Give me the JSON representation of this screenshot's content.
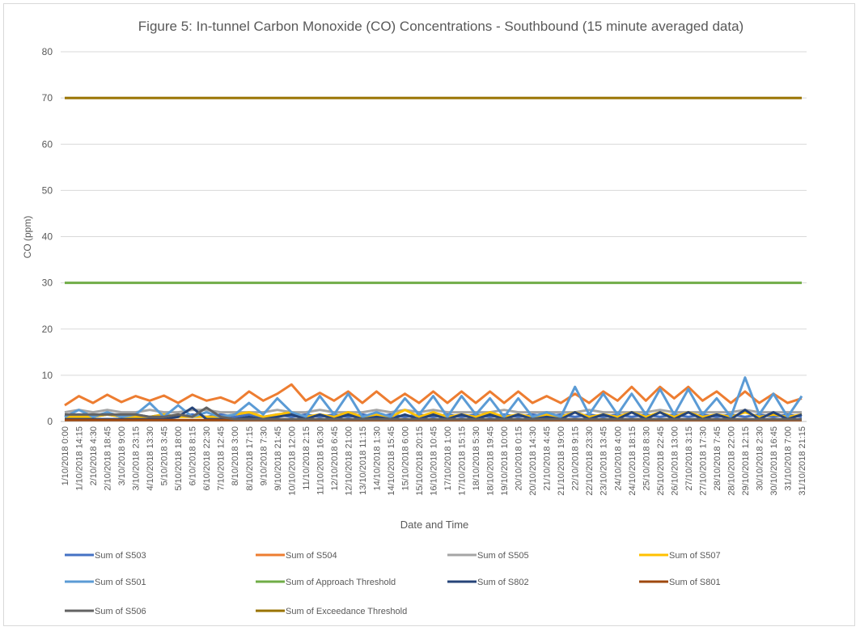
{
  "chart_data": {
    "type": "line",
    "title": "Figure 5:  In-tunnel Carbon Monoxide (CO) Concentrations - Southbound (15 minute averaged data)",
    "x_label": "Date and Time",
    "y_label": "CO (ppm)",
    "ylim": [
      0,
      80
    ],
    "yticks": [
      0,
      10,
      20,
      30,
      40,
      50,
      60,
      70,
      80
    ],
    "grid": true,
    "legend": "bottom",
    "categories": [
      "1/10/2018 0:00",
      "1/10/2018 14:15",
      "2/10/2018 4:30",
      "2/10/2018 18:45",
      "3/10/2018 9:00",
      "3/10/2018 23:15",
      "4/10/2018 13:30",
      "5/10/2018 3:45",
      "5/10/2018 18:00",
      "6/10/2018 8:15",
      "6/10/2018 22:30",
      "7/10/2018 12:45",
      "8/10/2018 3:00",
      "8/10/2018 17:15",
      "9/10/2018 7:30",
      "9/10/2018 21:45",
      "10/10/2018 12:00",
      "11/10/2018 2:15",
      "11/10/2018 16:30",
      "12/10/2018 6:45",
      "12/10/2018 21:00",
      "13/10/2018 11:15",
      "14/10/2018 1:30",
      "14/10/2018 15:45",
      "15/10/2018 6:00",
      "15/10/2018 20:15",
      "16/10/2018 10:45",
      "17/10/2018 1:00",
      "17/10/2018 15:15",
      "18/10/2018 5:30",
      "18/10/2018 19:45",
      "19/10/2018 10:00",
      "20/10/2018 0:15",
      "20/10/2018 14:30",
      "21/10/2018 4:45",
      "21/10/2018 19:00",
      "22/10/2018 9:15",
      "22/10/2018 23:30",
      "23/10/2018 13:45",
      "24/10/2018 4:00",
      "24/10/2018 18:15",
      "25/10/2018 8:30",
      "25/10/2018 22:45",
      "26/10/2018 13:00",
      "27/10/2018 3:15",
      "27/10/2018 17:30",
      "28/10/2018 7:45",
      "28/10/2018 22:00",
      "29/10/2018 12:15",
      "30/10/2018 2:30",
      "30/10/2018 16:45",
      "31/10/2018 7:00",
      "31/10/2018 21:15"
    ],
    "series": [
      {
        "name": "Sum of S503",
        "color": "#4472c4",
        "values": [
          1,
          1.5,
          1,
          1.5,
          1,
          1.5,
          1,
          1.5,
          1,
          1.5,
          1,
          1.5,
          1,
          1.5,
          1,
          1.5,
          1,
          1.5,
          1,
          1.5,
          1,
          1.5,
          1,
          1.5,
          1,
          1.5,
          1,
          1.5,
          1,
          1.5,
          1,
          1.5,
          1,
          1.5,
          1,
          1.5,
          1,
          1.5,
          1,
          1.5,
          1,
          1.5,
          1,
          1.5,
          1,
          1.5,
          1,
          1.5,
          1,
          1.5,
          1,
          1.5,
          1
        ]
      },
      {
        "name": "Sum of S504",
        "color": "#ed7d31",
        "values": [
          3.5,
          5.5,
          4,
          5.8,
          4.2,
          5.5,
          4.5,
          5.6,
          4,
          5.8,
          4.5,
          5.2,
          4,
          6.5,
          4.5,
          6,
          8,
          4.5,
          6.2,
          4.5,
          6.5,
          4,
          6.5,
          4,
          6,
          4,
          6.5,
          4,
          6.5,
          4,
          6.5,
          4,
          6.5,
          4,
          5.5,
          4,
          6,
          4,
          6.5,
          4.5,
          7.5,
          4.5,
          7.5,
          5,
          7.5,
          4.5,
          6.5,
          4,
          6.5,
          4,
          6,
          4,
          5
        ]
      },
      {
        "name": "Sum of S505",
        "color": "#a5a5a5",
        "values": [
          2,
          2.5,
          2,
          2.5,
          2,
          2,
          2.5,
          2,
          2,
          2.5,
          2.5,
          2,
          2,
          2,
          2,
          2.5,
          2,
          2,
          2.5,
          2,
          2,
          2,
          2.5,
          2,
          2.5,
          2,
          2.5,
          2,
          2,
          2,
          2,
          2.5,
          2,
          2,
          2,
          2,
          2,
          2.5,
          2,
          2,
          2,
          2,
          2.5,
          2,
          2,
          2,
          2,
          2,
          2.5,
          2,
          2,
          2,
          2
        ]
      },
      {
        "name": "Sum of S507",
        "color": "#ffc000",
        "values": [
          1,
          1,
          1,
          1.5,
          1,
          1,
          1,
          1.5,
          1,
          1,
          1,
          1,
          1.5,
          2,
          1,
          1.5,
          2,
          1,
          1.5,
          1,
          2,
          1,
          1.5,
          1,
          2.5,
          1,
          2,
          1,
          1.5,
          1,
          2,
          1,
          1.5,
          1,
          1.5,
          1,
          2,
          1,
          1.5,
          1,
          2,
          1,
          2,
          1,
          2,
          1,
          1.5,
          1,
          2,
          1,
          1.5,
          1,
          1.5
        ]
      },
      {
        "name": "Sum of S501",
        "color": "#5b9bd5",
        "values": [
          1,
          2.5,
          1,
          2,
          1,
          1.5,
          4,
          1,
          3.5,
          1,
          2,
          1,
          1.5,
          4,
          1.5,
          5,
          2,
          1,
          5.5,
          1.5,
          6,
          1,
          2,
          1,
          5,
          1.5,
          5.5,
          1,
          5.5,
          1.5,
          5,
          1,
          5,
          1,
          2,
          1,
          7.5,
          1.5,
          6,
          1.5,
          6,
          1.5,
          7,
          1.5,
          7,
          1.5,
          5,
          1,
          9.5,
          1.5,
          6,
          1,
          5.5
        ]
      },
      {
        "name": "Sum of Approach Threshold",
        "color": "#70ad47",
        "values": [
          30,
          30,
          30,
          30,
          30,
          30,
          30,
          30,
          30,
          30,
          30,
          30,
          30,
          30,
          30,
          30,
          30,
          30,
          30,
          30,
          30,
          30,
          30,
          30,
          30,
          30,
          30,
          30,
          30,
          30,
          30,
          30,
          30,
          30,
          30,
          30,
          30,
          30,
          30,
          30,
          30,
          30,
          30,
          30,
          30,
          30,
          30,
          30,
          30,
          30,
          30,
          30,
          30
        ]
      },
      {
        "name": "Sum of S802",
        "color": "#264478",
        "values": [
          0.5,
          0.5,
          0.5,
          0.5,
          0.5,
          0.5,
          0.5,
          0.5,
          1,
          3,
          0.5,
          0.5,
          0.5,
          1,
          0.5,
          1,
          1.5,
          0.5,
          1.5,
          0.5,
          1.5,
          0.5,
          1,
          0.5,
          1.5,
          0.5,
          1.5,
          0.5,
          1.5,
          0.5,
          1.5,
          0.5,
          1.5,
          0.5,
          1,
          0.5,
          2,
          0.5,
          1.5,
          0.5,
          2,
          0.5,
          2,
          0.5,
          2,
          0.5,
          1.5,
          0.5,
          2.5,
          0.5,
          2,
          0.5,
          1.5
        ]
      },
      {
        "name": "Sum of S801",
        "color": "#9e480e",
        "values": [
          0.3,
          0.3,
          0.3,
          0.3,
          0.3,
          0.3,
          0.3,
          0.3,
          0.3,
          0.3,
          0.3,
          0.3,
          0.3,
          0.3,
          0.3,
          0.3,
          0.3,
          0.3,
          0.3,
          0.3,
          0.3,
          0.3,
          0.3,
          0.3,
          0.3,
          0.3,
          0.3,
          0.3,
          0.3,
          0.3,
          0.3,
          0.3,
          0.3,
          0.3,
          0.3,
          0.3,
          0.3,
          0.3,
          0.3,
          0.3,
          0.3,
          0.3,
          0.3,
          0.3,
          0.3,
          0.3,
          0.3,
          0.3,
          0.3,
          0.3,
          0.3,
          0.3,
          0.3
        ]
      },
      {
        "name": "Sum of S506",
        "color": "#636363",
        "values": [
          1.5,
          1.5,
          1.5,
          1.5,
          1.5,
          1.5,
          1,
          1,
          1.5,
          1,
          3,
          1,
          0.5,
          0.5,
          0.5,
          0.5,
          0.5,
          0.5,
          0.5,
          0.5,
          0.5,
          0.5,
          0.5,
          0.5,
          0.5,
          0.5,
          0.5,
          0.5,
          0.5,
          0.5,
          0.5,
          0.5,
          0.5,
          0.5,
          0.5,
          0.5,
          0.5,
          0.5,
          0.5,
          0.5,
          0.5,
          0.5,
          0.5,
          0.5,
          0.5,
          0.5,
          0.5,
          0.5,
          0.5,
          0.5,
          0.5,
          0.5,
          0.5
        ]
      },
      {
        "name": "Sum of Exceedance Threshold",
        "color": "#997300",
        "values": [
          70,
          70,
          70,
          70,
          70,
          70,
          70,
          70,
          70,
          70,
          70,
          70,
          70,
          70,
          70,
          70,
          70,
          70,
          70,
          70,
          70,
          70,
          70,
          70,
          70,
          70,
          70,
          70,
          70,
          70,
          70,
          70,
          70,
          70,
          70,
          70,
          70,
          70,
          70,
          70,
          70,
          70,
          70,
          70,
          70,
          70,
          70,
          70,
          70,
          70,
          70,
          70,
          70
        ]
      }
    ]
  }
}
